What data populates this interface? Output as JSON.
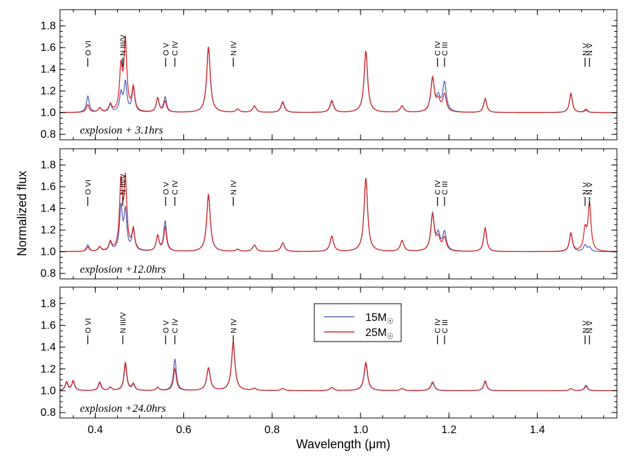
{
  "chart_data": {
    "type": "line",
    "xlabel": "Wavelength (μm)",
    "ylabel": "Normalized flux",
    "xlim": [
      0.32,
      1.58
    ],
    "ylim": [
      0.75,
      1.95
    ],
    "x_ticks": [
      "0.4",
      "0.6",
      "0.8",
      "1.0",
      "1.2",
      "1.4"
    ],
    "y_ticks": [
      "0.8",
      "1.0",
      "1.2",
      "1.4",
      "1.6",
      "1.8"
    ],
    "legend": {
      "placement": "center-right (bottom panel)"
    },
    "series_colors": {
      "15Msun": "#5a64b4",
      "25Msun": "#d42a2a"
    },
    "panels": [
      {
        "label": "explosion + 3.1hrs",
        "line_ids": [
          {
            "label": "O VI",
            "x": 0.383
          },
          {
            "label": "N III/V",
            "x": 0.462
          },
          {
            "label": "O V",
            "x": 0.559
          },
          {
            "label": "C IV",
            "x": 0.58
          },
          {
            "label": "N IV",
            "x": 0.712
          },
          {
            "label": "C IV",
            "x": 1.174
          },
          {
            "label": "C III",
            "x": 1.19
          },
          {
            "label": "N V",
            "x": 1.508
          },
          {
            "label": "N V",
            "x": 1.518
          }
        ],
        "series": [
          {
            "name": "15M☉",
            "peaks": [
              [
                0.383,
                1.15
              ],
              [
                0.41,
                1.04
              ],
              [
                0.434,
                1.07
              ],
              [
                0.458,
                1.17
              ],
              [
                0.468,
                1.27
              ],
              [
                0.486,
                1.22
              ],
              [
                0.541,
                1.13
              ],
              [
                0.558,
                1.14
              ],
              [
                0.656,
                1.6
              ],
              [
                0.722,
                1.03
              ],
              [
                0.76,
                1.06
              ],
              [
                0.824,
                1.09
              ],
              [
                0.935,
                1.1
              ],
              [
                1.012,
                1.56
              ],
              [
                1.094,
                1.06
              ],
              [
                1.163,
                1.31
              ],
              [
                1.176,
                1.12
              ],
              [
                1.19,
                1.27
              ],
              [
                1.282,
                1.13
              ],
              [
                1.476,
                1.17
              ],
              [
                1.51,
                1.02
              ]
            ]
          },
          {
            "name": "25M☉",
            "peaks": [
              [
                0.383,
                1.07
              ],
              [
                0.41,
                1.04
              ],
              [
                0.434,
                1.07
              ],
              [
                0.458,
                1.4
              ],
              [
                0.468,
                1.65
              ],
              [
                0.486,
                1.22
              ],
              [
                0.541,
                1.13
              ],
              [
                0.558,
                1.1
              ],
              [
                0.656,
                1.61
              ],
              [
                0.722,
                1.03
              ],
              [
                0.76,
                1.06
              ],
              [
                0.824,
                1.1
              ],
              [
                0.935,
                1.11
              ],
              [
                1.012,
                1.57
              ],
              [
                1.094,
                1.06
              ],
              [
                1.163,
                1.31
              ],
              [
                1.176,
                1.1
              ],
              [
                1.19,
                1.16
              ],
              [
                1.282,
                1.13
              ],
              [
                1.476,
                1.18
              ],
              [
                1.51,
                1.03
              ]
            ]
          }
        ]
      },
      {
        "label": "explosion +12.0hrs",
        "line_ids": [
          {
            "label": "O VI",
            "x": 0.383
          },
          {
            "label": "N III/V",
            "x": 0.462
          },
          {
            "label": "O V",
            "x": 0.559
          },
          {
            "label": "C IV",
            "x": 0.58
          },
          {
            "label": "N IV",
            "x": 0.712
          },
          {
            "label": "C IV",
            "x": 1.174
          },
          {
            "label": "C III",
            "x": 1.19
          },
          {
            "label": "N V",
            "x": 1.508
          },
          {
            "label": "N V",
            "x": 1.518
          }
        ],
        "series": [
          {
            "name": "15M☉",
            "peaks": [
              [
                0.383,
                1.06
              ],
              [
                0.41,
                1.04
              ],
              [
                0.434,
                1.08
              ],
              [
                0.458,
                1.4
              ],
              [
                0.468,
                1.36
              ],
              [
                0.486,
                1.19
              ],
              [
                0.541,
                1.14
              ],
              [
                0.558,
                1.28
              ],
              [
                0.656,
                1.52
              ],
              [
                0.722,
                1.02
              ],
              [
                0.76,
                1.06
              ],
              [
                0.824,
                1.08
              ],
              [
                0.935,
                1.14
              ],
              [
                1.012,
                1.68
              ],
              [
                1.094,
                1.1
              ],
              [
                1.163,
                1.34
              ],
              [
                1.176,
                1.14
              ],
              [
                1.19,
                1.17
              ],
              [
                1.282,
                1.22
              ],
              [
                1.476,
                1.17
              ],
              [
                1.508,
                1.06
              ],
              [
                1.518,
                1.04
              ]
            ]
          },
          {
            "name": "25M☉",
            "peaks": [
              [
                0.383,
                1.04
              ],
              [
                0.41,
                1.04
              ],
              [
                0.434,
                1.08
              ],
              [
                0.458,
                1.62
              ],
              [
                0.468,
                1.64
              ],
              [
                0.486,
                1.19
              ],
              [
                0.541,
                1.14
              ],
              [
                0.558,
                1.22
              ],
              [
                0.656,
                1.53
              ],
              [
                0.722,
                1.02
              ],
              [
                0.76,
                1.06
              ],
              [
                0.824,
                1.08
              ],
              [
                0.935,
                1.14
              ],
              [
                1.012,
                1.68
              ],
              [
                1.094,
                1.1
              ],
              [
                1.163,
                1.33
              ],
              [
                1.176,
                1.11
              ],
              [
                1.19,
                1.12
              ],
              [
                1.282,
                1.22
              ],
              [
                1.476,
                1.17
              ],
              [
                1.508,
                1.19
              ],
              [
                1.518,
                1.43
              ]
            ]
          }
        ]
      },
      {
        "label": "explosion +24.0hrs",
        "line_ids": [
          {
            "label": "O VI",
            "x": 0.383
          },
          {
            "label": "N III/V",
            "x": 0.462
          },
          {
            "label": "O V",
            "x": 0.559
          },
          {
            "label": "C IV",
            "x": 0.58
          },
          {
            "label": "N IV",
            "x": 0.712
          },
          {
            "label": "C IV",
            "x": 1.174
          },
          {
            "label": "C III",
            "x": 1.19
          },
          {
            "label": "N V",
            "x": 1.508
          },
          {
            "label": "N V",
            "x": 1.518
          }
        ],
        "series": [
          {
            "name": "15M☉",
            "peaks": [
              [
                0.335,
                1.07
              ],
              [
                0.35,
                1.08
              ],
              [
                0.41,
                1.07
              ],
              [
                0.434,
                1.03
              ],
              [
                0.468,
                1.23
              ],
              [
                0.486,
                1.05
              ],
              [
                0.541,
                1.03
              ],
              [
                0.58,
                1.29
              ],
              [
                0.656,
                1.2
              ],
              [
                0.712,
                1.42
              ],
              [
                0.76,
                1.02
              ],
              [
                0.824,
                1.02
              ],
              [
                0.935,
                1.03
              ],
              [
                1.012,
                1.24
              ],
              [
                1.094,
                1.02
              ],
              [
                1.163,
                1.07
              ],
              [
                1.282,
                1.08
              ],
              [
                1.476,
                1.02
              ],
              [
                1.51,
                1.05
              ]
            ]
          },
          {
            "name": "25M☉",
            "peaks": [
              [
                0.335,
                1.08
              ],
              [
                0.35,
                1.09
              ],
              [
                0.41,
                1.08
              ],
              [
                0.434,
                1.03
              ],
              [
                0.468,
                1.26
              ],
              [
                0.486,
                1.06
              ],
              [
                0.541,
                1.03
              ],
              [
                0.58,
                1.2
              ],
              [
                0.656,
                1.21
              ],
              [
                0.712,
                1.44
              ],
              [
                0.76,
                1.02
              ],
              [
                0.824,
                1.02
              ],
              [
                0.935,
                1.03
              ],
              [
                1.012,
                1.26
              ],
              [
                1.094,
                1.02
              ],
              [
                1.163,
                1.08
              ],
              [
                1.282,
                1.09
              ],
              [
                1.476,
                1.02
              ],
              [
                1.51,
                1.04
              ]
            ]
          }
        ]
      }
    ]
  },
  "legend_entries": [
    {
      "name": "15M",
      "sub": "☉",
      "color": "#5a64b4"
    },
    {
      "name": "25M",
      "sub": "☉",
      "color": "#d42a2a"
    }
  ]
}
